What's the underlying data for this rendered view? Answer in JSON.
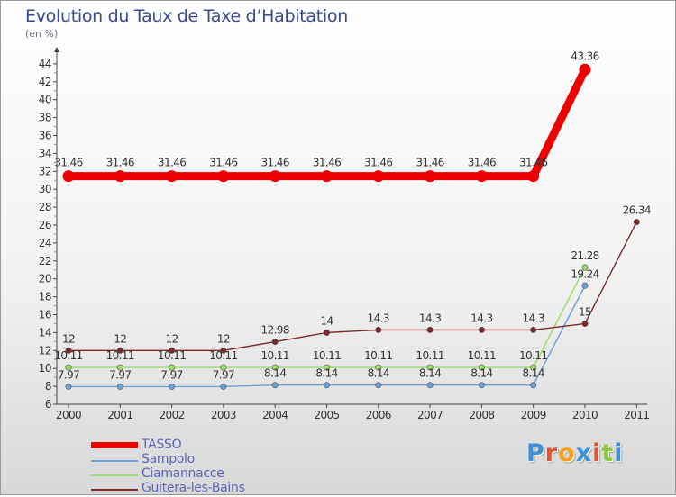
{
  "title": "Evolution du Taux de Taxe d’Habitation",
  "subtitle": "(en %)",
  "logo": {
    "text": "Proxiti"
  },
  "chart_data": {
    "type": "line",
    "title": "Evolution du Taux de Taxe d’Habitation",
    "ylabel": "(en %)",
    "xlabel": "",
    "x": [
      "2000",
      "2001",
      "2002",
      "2003",
      "2004",
      "2005",
      "2006",
      "2007",
      "2008",
      "2009",
      "2010",
      "2011"
    ],
    "y_ticks": [
      6,
      8,
      10,
      12,
      14,
      16,
      18,
      20,
      22,
      24,
      26,
      28,
      30,
      32,
      34,
      36,
      38,
      40,
      42,
      44
    ],
    "ylim": [
      6,
      45
    ],
    "grid": false,
    "legend_position": "bottom-left",
    "series": [
      {
        "name": "TASSO",
        "color": "#ee0000",
        "values": [
          31.46,
          31.46,
          31.46,
          31.46,
          31.46,
          31.46,
          31.46,
          31.46,
          31.46,
          31.46,
          43.36,
          null
        ],
        "labels": [
          "31.46",
          "31.46",
          "31.46",
          "31.46",
          "31.46",
          "31.46",
          "31.46",
          "31.46",
          "31.46",
          "31.46",
          "43.36",
          ""
        ]
      },
      {
        "name": "Sampolo",
        "color": "#6d9ed6",
        "values": [
          7.97,
          7.97,
          7.97,
          7.97,
          8.14,
          8.14,
          8.14,
          8.14,
          8.14,
          8.14,
          19.24,
          null
        ],
        "labels": [
          "7.97",
          "7.97",
          "7.97",
          "7.97",
          "8.14",
          "8.14",
          "8.14",
          "8.14",
          "8.14",
          "8.14",
          "19.24",
          ""
        ]
      },
      {
        "name": "Ciamannacce",
        "color": "#99dd66",
        "values": [
          10.11,
          10.11,
          10.11,
          10.11,
          10.11,
          10.11,
          10.11,
          10.11,
          10.11,
          10.11,
          21.28,
          null
        ],
        "labels": [
          "10.11",
          "10.11",
          "10.11",
          "10.11",
          "10.11",
          "10.11",
          "10.11",
          "10.11",
          "10.11",
          "10.11",
          "21.28",
          ""
        ]
      },
      {
        "name": "Guitera-les-Bains",
        "color": "#7a2a2a",
        "values": [
          12,
          12,
          12,
          12,
          12.98,
          14,
          14.3,
          14.3,
          14.3,
          14.3,
          15,
          26.34
        ],
        "labels": [
          "12",
          "12",
          "12",
          "12",
          "12.98",
          "14",
          "14.3",
          "14.3",
          "14.3",
          "14.3",
          "15",
          "26.34"
        ]
      }
    ]
  }
}
